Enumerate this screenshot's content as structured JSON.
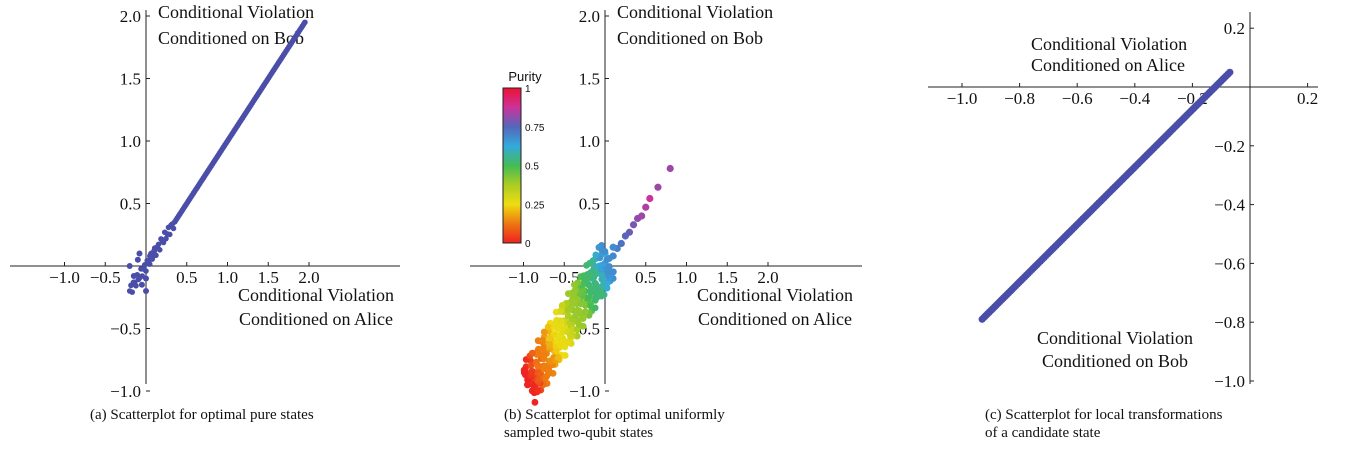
{
  "chart_data": [
    {
      "type": "scatter",
      "caption": "(a) Scatterplot for optimal pure states",
      "xlim": [
        -1.0,
        2.0
      ],
      "ylim": [
        -1.0,
        2.0
      ],
      "x_ticks": [
        "−1.0",
        "−0.5",
        "0.5",
        "1.0",
        "1.5",
        "2.0"
      ],
      "y_ticks": [
        "−1.0",
        "−0.5",
        "0.5",
        "1.0",
        "1.5",
        "2.0"
      ],
      "xlabel": [
        "Conditional Violation",
        "Conditioned on Alice"
      ],
      "ylabel": [
        "Conditional Violation",
        "Conditioned on Bob"
      ],
      "point_color": "#4a4ea8",
      "description": "points lie along y = x from about -0.2 to 1.95, with a small spread near the origin",
      "line": [
        [
          -0.2,
          -0.2
        ],
        [
          1.95,
          1.95
        ]
      ],
      "cluster": [
        [
          -0.2,
          0.0
        ],
        [
          -0.15,
          -0.08
        ],
        [
          -0.1,
          0.05
        ],
        [
          -0.05,
          -0.15
        ],
        [
          0.0,
          -0.1
        ],
        [
          0.05,
          0.08
        ],
        [
          0.1,
          0.12
        ],
        [
          -0.08,
          0.1
        ],
        [
          0.0,
          -0.2
        ],
        [
          0.02,
          0.02
        ]
      ]
    },
    {
      "type": "scatter",
      "caption": [
        "(b) Scatterplot for optimal uniformly",
        "sampled two-qubit states"
      ],
      "xlim": [
        -1.0,
        2.0
      ],
      "ylim": [
        -1.0,
        2.0
      ],
      "x_ticks": [
        "−1.0",
        "−0.5",
        "0.5",
        "1.0",
        "1.5",
        "2.0"
      ],
      "y_ticks": [
        "−1.0",
        "−0.5",
        "0.5",
        "1.0",
        "1.5",
        "2.0"
      ],
      "xlabel": [
        "Conditional Violation",
        "Conditioned on Alice"
      ],
      "ylabel": [
        "Conditional Violation",
        "Conditioned on Bob"
      ],
      "colorbar": {
        "title": "Purity",
        "ticks": [
          "1",
          "0.75",
          "0.5",
          "0.25",
          "0"
        ],
        "colors": [
          "#ee1133",
          "#cc3399",
          "#5566bb",
          "#33aadd",
          "#44bb55",
          "#aacc22",
          "#eedd11",
          "#ee7711",
          "#ee2222"
        ]
      },
      "description": "points spread along y = x from about (-0.95,-0.95) to (0.8,0.78); purity increases with position",
      "points": [
        [
          -0.95,
          -0.95,
          0.0
        ],
        [
          -0.9,
          -0.92,
          0.02
        ],
        [
          -0.88,
          -0.86,
          0.04
        ],
        [
          -0.85,
          -0.9,
          0.05
        ],
        [
          -0.82,
          -0.8,
          0.08
        ],
        [
          -0.8,
          -0.85,
          0.07
        ],
        [
          -0.78,
          -0.74,
          0.1
        ],
        [
          -0.75,
          -0.8,
          0.12
        ],
        [
          -0.72,
          -0.7,
          0.15
        ],
        [
          -0.7,
          -0.62,
          0.18
        ],
        [
          -0.68,
          -0.76,
          0.17
        ],
        [
          -0.65,
          -0.6,
          0.22
        ],
        [
          -0.62,
          -0.68,
          0.2
        ],
        [
          -0.6,
          -0.55,
          0.26
        ],
        [
          -0.58,
          -0.62,
          0.25
        ],
        [
          -0.55,
          -0.5,
          0.3
        ],
        [
          -0.52,
          -0.58,
          0.28
        ],
        [
          -0.5,
          -0.44,
          0.33
        ],
        [
          -0.48,
          -0.52,
          0.32
        ],
        [
          -0.45,
          -0.4,
          0.36
        ],
        [
          -0.42,
          -0.48,
          0.35
        ],
        [
          -0.4,
          -0.35,
          0.4
        ],
        [
          -0.38,
          -0.42,
          0.38
        ],
        [
          -0.35,
          -0.3,
          0.43
        ],
        [
          -0.32,
          -0.36,
          0.42
        ],
        [
          -0.3,
          -0.25,
          0.46
        ],
        [
          -0.28,
          -0.3,
          0.45
        ],
        [
          -0.25,
          -0.2,
          0.5
        ],
        [
          -0.22,
          -0.26,
          0.48
        ],
        [
          -0.2,
          -0.15,
          0.52
        ],
        [
          -0.18,
          -0.2,
          0.5
        ],
        [
          -0.15,
          -0.1,
          0.55
        ],
        [
          -0.12,
          -0.14,
          0.54
        ],
        [
          -0.1,
          -0.06,
          0.58
        ],
        [
          -0.05,
          -0.02,
          0.6
        ],
        [
          0.0,
          0.02,
          0.62
        ],
        [
          0.05,
          0.06,
          0.64
        ],
        [
          0.1,
          0.08,
          0.66
        ],
        [
          0.15,
          0.14,
          0.68
        ],
        [
          0.2,
          0.18,
          0.7
        ],
        [
          0.25,
          0.24,
          0.72
        ],
        [
          0.3,
          0.27,
          0.74
        ],
        [
          0.35,
          0.33,
          0.76
        ],
        [
          0.4,
          0.38,
          0.78
        ],
        [
          0.45,
          0.4,
          0.8
        ],
        [
          0.5,
          0.47,
          0.82
        ],
        [
          0.55,
          0.54,
          0.85
        ],
        [
          0.65,
          0.63,
          0.8
        ],
        [
          0.8,
          0.78,
          0.8
        ],
        [
          -0.6,
          -0.72,
          0.2
        ],
        [
          -0.7,
          -0.8,
          0.13
        ],
        [
          -0.5,
          -0.6,
          0.27
        ],
        [
          -0.4,
          -0.5,
          0.33
        ],
        [
          -0.3,
          -0.38,
          0.42
        ],
        [
          -0.2,
          -0.3,
          0.47
        ],
        [
          -0.1,
          -0.18,
          0.53
        ],
        [
          -0.75,
          -0.66,
          0.14
        ],
        [
          -0.65,
          -0.55,
          0.2
        ],
        [
          -0.55,
          -0.44,
          0.28
        ],
        [
          -0.45,
          -0.34,
          0.36
        ],
        [
          -0.35,
          -0.24,
          0.44
        ],
        [
          -0.25,
          -0.12,
          0.5
        ],
        [
          -0.15,
          -0.04,
          0.55
        ],
        [
          0.0,
          0.1,
          0.6
        ],
        [
          0.1,
          0.15,
          0.65
        ]
      ]
    },
    {
      "type": "scatter",
      "caption": [
        "(c) Scatterplot for local transformations",
        "of a candidate state"
      ],
      "xlim": [
        -1.0,
        0.2
      ],
      "ylim": [
        -1.0,
        0.2
      ],
      "x_ticks": [
        "−1.0",
        "−0.8",
        "−0.6",
        "−0.4",
        "−0.2",
        "0.2"
      ],
      "y_ticks": [
        "−1.0",
        "−0.8",
        "−0.6",
        "−0.4",
        "−0.2",
        "0.2"
      ],
      "xlabel": [
        "Conditional Violation",
        "Conditioned on Alice"
      ],
      "ylabel": [
        "Conditional Violation",
        "Conditioned on Bob"
      ],
      "point_color": "#4a4ea8",
      "description": "points lie along a straight line from about (-0.93, -0.79) to (-0.07, 0.05)",
      "line": [
        [
          -0.93,
          -0.79
        ],
        [
          -0.07,
          0.05
        ]
      ]
    }
  ]
}
